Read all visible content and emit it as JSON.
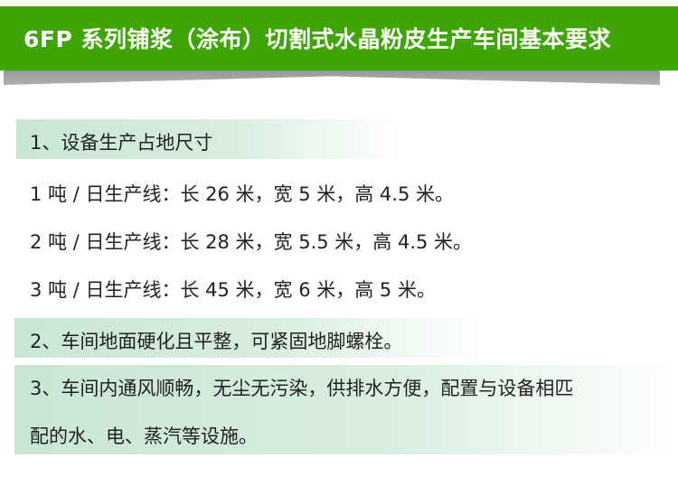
{
  "title": "6FP 系列铺浆（涂布）切割式水晶粉皮生产车间基本要求",
  "colors": {
    "banner": "#3fa504",
    "highlight": "#c9e6d4"
  },
  "sections": [
    {
      "heading": "1、设备生产占地尺寸",
      "lines": [
        "1 吨 / 日生产线：长 26 米，宽 5 米，高 4.5 米。",
        "2 吨 / 日生产线：长 28 米，宽 5.5 米，高 4.5 米。",
        "3 吨 / 日生产线：长 45 米，宽 6 米，高 5 米。"
      ]
    },
    {
      "heading": "2、车间地面硬化且平整，可紧固地脚螺栓。"
    },
    {
      "heading": "3、车间内通风顺畅，无尘无污染，供排水方便，配置与设备相匹",
      "continuation": "配的水、电、蒸汽等设施。"
    }
  ]
}
